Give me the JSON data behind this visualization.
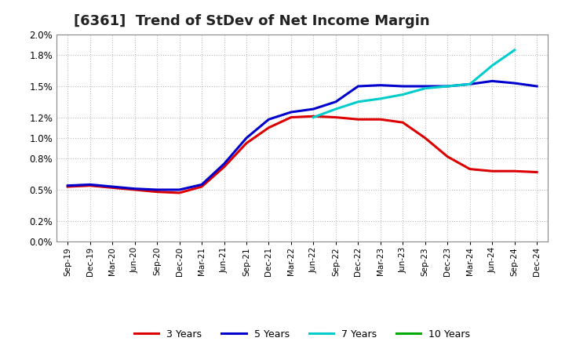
{
  "title": "[6361]  Trend of StDev of Net Income Margin",
  "x_labels": [
    "Sep-19",
    "Dec-19",
    "Mar-20",
    "Jun-20",
    "Sep-20",
    "Dec-20",
    "Mar-21",
    "Jun-21",
    "Sep-21",
    "Dec-21",
    "Mar-22",
    "Jun-22",
    "Sep-22",
    "Dec-22",
    "Mar-23",
    "Jun-23",
    "Sep-23",
    "Dec-23",
    "Mar-24",
    "Jun-24",
    "Sep-24",
    "Dec-24"
  ],
  "series_3y": [
    0.0053,
    0.0054,
    0.0052,
    0.005,
    0.0048,
    0.0047,
    0.0053,
    0.0072,
    0.0095,
    0.011,
    0.012,
    0.0121,
    0.012,
    0.0118,
    0.0118,
    0.0115,
    0.01,
    0.0082,
    0.007,
    0.0068,
    0.0068,
    0.0067
  ],
  "series_5y": [
    0.0054,
    0.0055,
    0.0053,
    0.0051,
    0.005,
    0.005,
    0.0055,
    0.0075,
    0.01,
    0.0118,
    0.0125,
    0.0128,
    0.0135,
    0.015,
    0.0151,
    0.015,
    0.015,
    0.015,
    0.0152,
    0.0155,
    0.0153,
    0.015
  ],
  "series_7y": [
    null,
    null,
    null,
    null,
    null,
    null,
    null,
    null,
    null,
    null,
    null,
    0.012,
    0.0128,
    0.0135,
    0.0138,
    0.0142,
    0.0148,
    0.015,
    0.0152,
    0.017,
    0.0185,
    null
  ],
  "series_10y": [
    null,
    null,
    null,
    null,
    null,
    null,
    null,
    null,
    null,
    null,
    null,
    null,
    null,
    null,
    null,
    null,
    null,
    null,
    null,
    null,
    null,
    null
  ],
  "color_3y": "#dd0000",
  "color_5y": "#0000cc",
  "color_7y": "#00cccc",
  "color_10y": "#00aa00",
  "ylim": [
    0.0,
    0.02
  ],
  "yticks": [
    0.0,
    0.002,
    0.005,
    0.008,
    0.01,
    0.012,
    0.015,
    0.018,
    0.02
  ],
  "ytick_labels": [
    "0.0%",
    "0.2%",
    "0.5%",
    "0.8%",
    "1.0%",
    "1.2%",
    "1.5%",
    "1.8%",
    "2.0%"
  ],
  "background_color": "#ffffff",
  "plot_bg_color": "#ffffff",
  "grid_color": "#aaaaaa",
  "title_fontsize": 13,
  "legend_labels": [
    "3 Years",
    "5 Years",
    "7 Years",
    "10 Years"
  ],
  "line_width": 2.2
}
